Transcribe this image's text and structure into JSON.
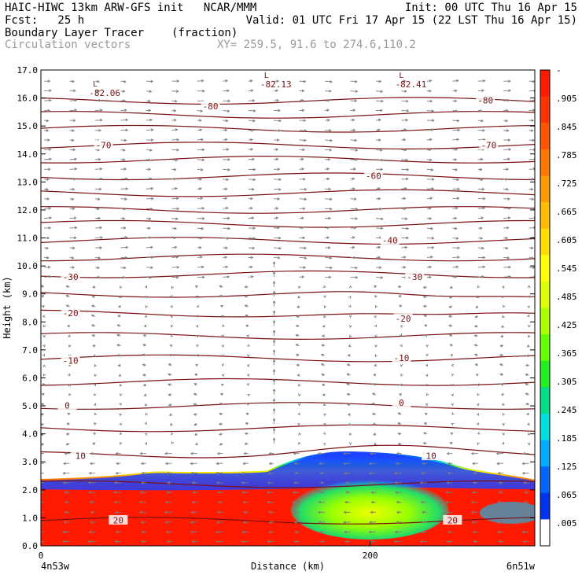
{
  "header": {
    "line1_left": "HAIC-HIWC 13km ARW-GFS init   NCAR/MMM",
    "line1_right": "Init: 00 UTC Thu 16 Apr 15",
    "line2_left": "Fcst:   25 h",
    "line2_right": "Valid: 01 UTC Fri 17 Apr 15 (22 LST Thu 16 Apr 15)",
    "line3_left": "Boundary Layer Tracer",
    "line3_units": "(fraction)",
    "line4_left": "Circulation vectors",
    "line4_xy": "XY= 259.5, 91.6 to 274.6,110.2"
  },
  "chart_data": {
    "type": "heatmap",
    "ylabel": "Height (km)",
    "xlabel": "Distance (km)",
    "xlim": [
      0,
      300
    ],
    "ylim": [
      0,
      17
    ],
    "x_ticks": [
      {
        "value": 0,
        "label": "0"
      },
      {
        "value": 200,
        "label": "200"
      }
    ],
    "y_ticks": [
      "0.0",
      "1.0",
      "2.0",
      "3.0",
      "4.0",
      "5.0",
      "6.0",
      "7.0",
      "8.0",
      "9.0",
      "10.0",
      "11.0",
      "12.0",
      "13.0",
      "14.0",
      "15.0",
      "16.0",
      "17.0"
    ],
    "endpoint_labels": {
      "left": "4n53w",
      "right": "6n51w"
    },
    "colorbar_labels": [
      "-",
      ".905",
      ".845",
      ".785",
      ".725",
      ".665",
      ".605",
      ".545",
      ".485",
      ".425",
      ".365",
      ".305",
      ".245",
      ".185",
      ".125",
      ".065",
      ".005"
    ],
    "colorbar_colors": [
      "#ff1a00",
      "#ff3300",
      "#ff5500",
      "#ff7700",
      "#ff9900",
      "#ffbb00",
      "#ffdd00",
      "#ffff00",
      "#ddff00",
      "#aaff00",
      "#66ff00",
      "#22ee22",
      "#00dd88",
      "#00dddd",
      "#00aaff",
      "#0066ff",
      "#0033ee",
      "#ffffff"
    ],
    "contour_labels": [
      {
        "text": "-80",
        "x": 103,
        "y": 15.7
      },
      {
        "text": "-80",
        "x": 270,
        "y": 15.9
      },
      {
        "text": "-70",
        "x": 38,
        "y": 14.3
      },
      {
        "text": "-70",
        "x": 272,
        "y": 14.3
      },
      {
        "text": "-60",
        "x": 202,
        "y": 13.2
      },
      {
        "text": "-40",
        "x": 212,
        "y": 10.9
      },
      {
        "text": "-30",
        "x": 18,
        "y": 9.6
      },
      {
        "text": "-30",
        "x": 227,
        "y": 9.6
      },
      {
        "text": "-20",
        "x": 18,
        "y": 8.3
      },
      {
        "text": "-20",
        "x": 220,
        "y": 8.1
      },
      {
        "text": "-10",
        "x": 18,
        "y": 6.6
      },
      {
        "text": "-10",
        "x": 219,
        "y": 6.7
      },
      {
        "text": "0",
        "x": 16,
        "y": 5.0
      },
      {
        "text": "0",
        "x": 219,
        "y": 5.1
      },
      {
        "text": "10",
        "x": 24,
        "y": 3.2
      },
      {
        "text": "10",
        "x": 237,
        "y": 3.2
      },
      {
        "text": "20",
        "x": 47,
        "y": 0.9
      },
      {
        "text": "20",
        "x": 250,
        "y": 0.9
      }
    ],
    "lows": [
      {
        "label": "L",
        "value": "-82.06",
        "x": 33,
        "y": 16.3
      },
      {
        "label": "L",
        "value": "-82.13",
        "x": 137,
        "y": 16.6
      },
      {
        "label": "L",
        "value": "-82.41",
        "x": 219,
        "y": 16.6
      }
    ],
    "isotherm_levels_km": [
      0.9,
      2.2,
      3.25,
      4.2,
      5.0,
      5.85,
      6.7,
      7.5,
      8.3,
      9.0,
      9.7,
      10.3,
      10.9,
      11.5,
      12.0,
      12.6,
      13.2,
      13.8,
      14.3,
      14.9,
      15.4,
      15.9
    ]
  }
}
